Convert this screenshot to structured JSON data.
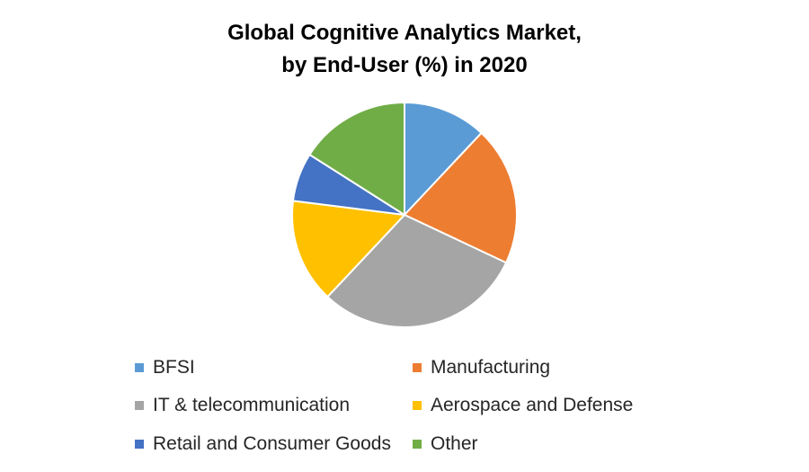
{
  "chart_data": {
    "type": "pie",
    "title_lines": [
      "Global Cognitive Analytics Market,",
      "by End-User (%) in 2020"
    ],
    "categories": [
      "BFSI",
      "Manufacturing",
      "IT & telecommunication",
      "Aerospace and Defense",
      "Retail and Consumer Goods",
      "Other"
    ],
    "values": [
      12,
      20,
      30,
      15,
      7,
      16
    ],
    "colors": [
      "#5B9BD5",
      "#ED7D31",
      "#A5A5A5",
      "#FFC000",
      "#4472C4",
      "#70AD47"
    ],
    "legend_position": "bottom"
  }
}
